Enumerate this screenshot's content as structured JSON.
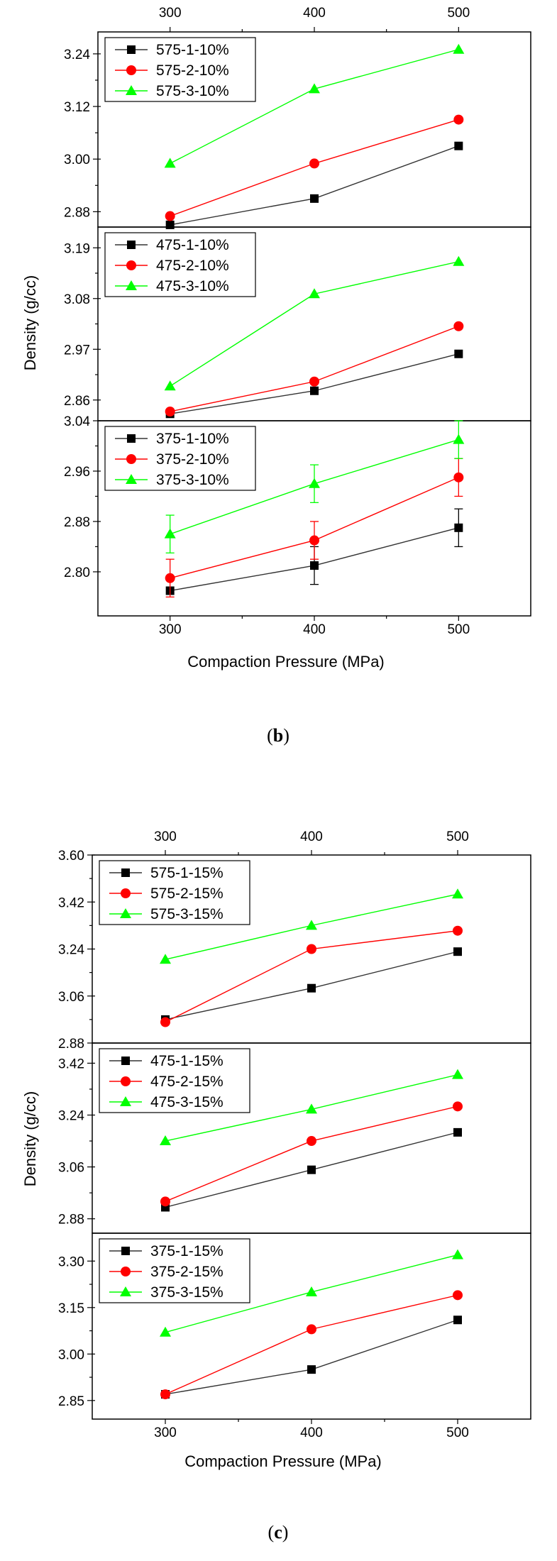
{
  "chart_data": [
    {
      "type": "line",
      "figure": "b",
      "caption_letter": "b",
      "xlabel": "Compaction Pressure (MPa)",
      "ylabel": "Density (g/cc)",
      "x_ticks": [
        "300",
        "400",
        "500"
      ],
      "xlim": [
        250,
        550
      ],
      "panels": [
        {
          "ylim": [
            2.845,
            3.29
          ],
          "ticks": [
            2.88,
            3.0,
            3.12,
            3.24
          ],
          "tick_labels": [
            "2.88",
            "3.00",
            "3.12",
            "3.24"
          ],
          "series": [
            {
              "name": "575-1-10%",
              "color": "#000000",
              "marker": "square",
              "x": [
                300,
                400,
                500
              ],
              "y": [
                2.85,
                2.91,
                3.03
              ]
            },
            {
              "name": "575-2-10%",
              "color": "#ff0000",
              "marker": "circle",
              "x": [
                300,
                400,
                500
              ],
              "y": [
                2.87,
                2.99,
                3.09
              ]
            },
            {
              "name": "575-3-10%",
              "color": "#00ff00",
              "marker": "triangle",
              "x": [
                300,
                400,
                500
              ],
              "y": [
                2.99,
                3.16,
                3.25
              ]
            }
          ]
        },
        {
          "ylim": [
            2.815,
            3.235
          ],
          "ticks": [
            2.86,
            2.97,
            3.08,
            3.19
          ],
          "tick_labels": [
            "2.86",
            "2.97",
            "3.08",
            "3.19"
          ],
          "series": [
            {
              "name": "475-1-10%",
              "color": "#000000",
              "marker": "square",
              "x": [
                300,
                400,
                500
              ],
              "y": [
                2.83,
                2.88,
                2.96
              ]
            },
            {
              "name": "475-2-10%",
              "color": "#ff0000",
              "marker": "circle",
              "x": [
                300,
                400,
                500
              ],
              "y": [
                2.835,
                2.9,
                3.02
              ]
            },
            {
              "name": "475-3-10%",
              "color": "#00ff00",
              "marker": "triangle",
              "x": [
                300,
                400,
                500
              ],
              "y": [
                2.89,
                3.09,
                3.16
              ]
            }
          ]
        },
        {
          "ylim": [
            2.73,
            3.04
          ],
          "ticks": [
            2.8,
            2.88,
            2.96,
            3.04
          ],
          "tick_labels": [
            "2.80",
            "2.88",
            "2.96",
            "3.04"
          ],
          "series": [
            {
              "name": "375-1-10%",
              "color": "#000000",
              "marker": "square",
              "x": [
                300,
                400,
                500
              ],
              "y": [
                2.77,
                2.81,
                2.87
              ],
              "err": [
                0,
                0.03,
                0.03
              ]
            },
            {
              "name": "375-2-10%",
              "color": "#ff0000",
              "marker": "circle",
              "x": [
                300,
                400,
                500
              ],
              "y": [
                2.79,
                2.85,
                2.95
              ],
              "err": [
                0.03,
                0.03,
                0.03
              ]
            },
            {
              "name": "375-3-10%",
              "color": "#00ff00",
              "marker": "triangle",
              "x": [
                300,
                400,
                500
              ],
              "y": [
                2.86,
                2.94,
                3.01
              ],
              "err": [
                0.03,
                0.03,
                0.03
              ]
            }
          ]
        }
      ]
    },
    {
      "type": "line",
      "figure": "c",
      "caption_letter": "c",
      "xlabel": "Compaction Pressure (MPa)",
      "ylabel": "Density (g/cc)",
      "x_ticks": [
        "300",
        "400",
        "500"
      ],
      "xlim": [
        250,
        550
      ],
      "panels": [
        {
          "ylim": [
            2.88,
            3.6
          ],
          "ticks": [
            2.88,
            3.06,
            3.24,
            3.42,
            3.6
          ],
          "tick_labels": [
            "2.88",
            "3.06",
            "3.24",
            "3.42",
            "3.60"
          ],
          "series": [
            {
              "name": "575-1-15%",
              "color": "#000000",
              "marker": "square",
              "x": [
                300,
                400,
                500
              ],
              "y": [
                2.97,
                3.09,
                3.23
              ]
            },
            {
              "name": "575-2-15%",
              "color": "#ff0000",
              "marker": "circle",
              "x": [
                300,
                400,
                500
              ],
              "y": [
                2.96,
                3.24,
                3.31
              ]
            },
            {
              "name": "575-3-15%",
              "color": "#00ff00",
              "marker": "triangle",
              "x": [
                300,
                400,
                500
              ],
              "y": [
                3.2,
                3.33,
                3.45
              ]
            }
          ]
        },
        {
          "ylim": [
            2.83,
            3.49
          ],
          "ticks": [
            2.88,
            3.06,
            3.24,
            3.42
          ],
          "tick_labels": [
            "2.88",
            "3.06",
            "3.24",
            "3.42"
          ],
          "series": [
            {
              "name": "475-1-15%",
              "color": "#000000",
              "marker": "square",
              "x": [
                300,
                400,
                500
              ],
              "y": [
                2.92,
                3.05,
                3.18
              ]
            },
            {
              "name": "475-2-15%",
              "color": "#ff0000",
              "marker": "circle",
              "x": [
                300,
                400,
                500
              ],
              "y": [
                2.94,
                3.15,
                3.27
              ]
            },
            {
              "name": "475-3-15%",
              "color": "#00ff00",
              "marker": "triangle",
              "x": [
                300,
                400,
                500
              ],
              "y": [
                3.15,
                3.26,
                3.38
              ]
            }
          ]
        },
        {
          "ylim": [
            2.79,
            3.39
          ],
          "ticks": [
            2.85,
            3.0,
            3.15,
            3.3
          ],
          "tick_labels": [
            "2.85",
            "3.00",
            "3.15",
            "3.30"
          ],
          "series": [
            {
              "name": "375-1-15%",
              "color": "#000000",
              "marker": "square",
              "x": [
                300,
                400,
                500
              ],
              "y": [
                2.87,
                2.95,
                3.11
              ]
            },
            {
              "name": "375-2-15%",
              "color": "#ff0000",
              "marker": "circle",
              "x": [
                300,
                400,
                500
              ],
              "y": [
                2.87,
                3.08,
                3.19
              ]
            },
            {
              "name": "375-3-15%",
              "color": "#00ff00",
              "marker": "triangle",
              "x": [
                300,
                400,
                500
              ],
              "y": [
                3.07,
                3.2,
                3.32
              ]
            }
          ]
        }
      ]
    }
  ]
}
